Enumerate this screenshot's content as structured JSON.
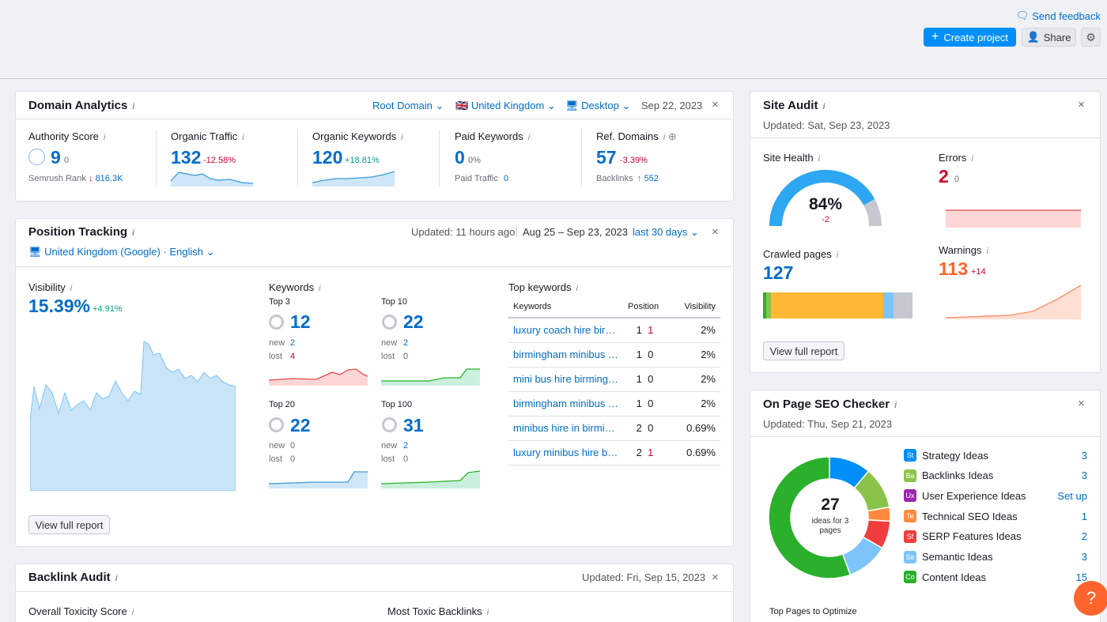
{
  "header": {
    "feedback": "Send feedback",
    "create_project": "Create project",
    "share": "Share"
  },
  "domain_analytics": {
    "title": "Domain Analytics",
    "root_domain": "Root Domain",
    "country": "United Kingdom",
    "device": "Desktop",
    "date": "Sep 22, 2023",
    "authority_label": "Authority Score",
    "authority_value": "9",
    "authority_delta": "0",
    "semrush_rank_label": "Semrush Rank",
    "semrush_rank": "816.3K",
    "organic_traffic_label": "Organic Traffic",
    "organic_traffic": "132",
    "organic_traffic_delta": "-12.58%",
    "organic_keywords_label": "Organic Keywords",
    "organic_keywords": "120",
    "organic_keywords_delta": "+18.81%",
    "paid_keywords_label": "Paid Keywords",
    "paid_keywords": "0",
    "paid_keywords_delta": "0%",
    "paid_traffic_label": "Paid Traffic",
    "paid_traffic": "0",
    "ref_domains_label": "Ref. Domains",
    "ref_domains": "57",
    "ref_domains_delta": "-3.39%",
    "backlinks_label": "Backlinks",
    "backlinks": "552"
  },
  "position_tracking": {
    "title": "Position Tracking",
    "updated": "Updated: 11 hours ago",
    "range": "Aug 25 – Sep 23, 2023",
    "period": "last 30 days",
    "location": "United Kingdom (Google) · English",
    "visibility_label": "Visibility",
    "visibility": "15.39%",
    "visibility_delta": "+4.91%",
    "keywords_label": "Keywords",
    "top3_label": "Top 3",
    "top3": "12",
    "top3_new": "2",
    "top3_lost": "4",
    "top10_label": "Top 10",
    "top10": "22",
    "top10_new": "2",
    "top10_lost": "0",
    "top20_label": "Top 20",
    "top20": "22",
    "top20_new": "0",
    "top20_lost": "0",
    "top100_label": "Top 100",
    "top100": "31",
    "top100_new": "2",
    "top100_lost": "0",
    "new_label": "new",
    "lost_label": "lost",
    "view_full": "View full report",
    "top_keywords_label": "Top keywords",
    "table_headers": [
      "Keywords",
      "Position",
      "Visibility"
    ],
    "rows": [
      {
        "kw": "luxury coach hire bir…",
        "pos": "1",
        "chg": "1",
        "vis": "2%"
      },
      {
        "kw": "birmingham minibus …",
        "pos": "1",
        "chg": "0",
        "vis": "2%"
      },
      {
        "kw": "mini bus hire birming…",
        "pos": "1",
        "chg": "0",
        "vis": "2%"
      },
      {
        "kw": "birmingham minibus …",
        "pos": "1",
        "chg": "0",
        "vis": "2%"
      },
      {
        "kw": "minibus hire in birmi…",
        "pos": "2",
        "chg": "0",
        "vis": "0.69%"
      },
      {
        "kw": "luxury minibus hire b…",
        "pos": "2",
        "chg": "1",
        "vis": "0.69%"
      }
    ]
  },
  "backlink_audit": {
    "title": "Backlink Audit",
    "updated": "Updated: Fri, Sep 15, 2023",
    "toxicity": "Overall Toxicity Score",
    "most_toxic": "Most Toxic Backlinks"
  },
  "site_audit": {
    "title": "Site Audit",
    "updated": "Updated: Sat, Sep 23, 2023",
    "site_health_label": "Site Health",
    "site_health": "84%",
    "site_health_delta": "-2",
    "errors_label": "Errors",
    "errors": "2",
    "errors_delta": "0",
    "crawled_label": "Crawled pages",
    "crawled": "127",
    "warnings_label": "Warnings",
    "warnings": "113",
    "warnings_delta": "+14",
    "view_full": "View full report",
    "site_health_percent": 84
  },
  "on_page": {
    "title": "On Page SEO Checker",
    "updated": "Updated: Thu, Sep 21, 2023",
    "total": "27",
    "total_sub": "ideas for 3 pages",
    "top_pages": "Top Pages to Optimize",
    "ideas": [
      {
        "abbr": "St",
        "label": "Strategy Ideas",
        "value": "3",
        "color": "#008ff8"
      },
      {
        "abbr": "Ba",
        "label": "Backlinks Ideas",
        "value": "3",
        "color": "#8bc34a"
      },
      {
        "abbr": "Ux",
        "label": "User Experience Ideas",
        "value": "Set up",
        "color": "#9c27b0"
      },
      {
        "abbr": "Te",
        "label": "Technical SEO Ideas",
        "value": "1",
        "color": "#ff8a3d"
      },
      {
        "abbr": "Sf",
        "label": "SERP Features Ideas",
        "value": "2",
        "color": "#f03e3e"
      },
      {
        "abbr": "Se",
        "label": "Semantic Ideas",
        "value": "3",
        "color": "#7cc4fa"
      },
      {
        "abbr": "Co",
        "label": "Content Ideas",
        "value": "15",
        "color": "#2bb02b"
      }
    ]
  },
  "help": "?"
}
